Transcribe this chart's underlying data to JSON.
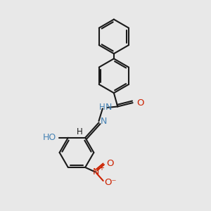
{
  "bg_color": "#e8e8e8",
  "bond_color": "#1a1a1a",
  "N_color": "#4682b4",
  "O_color": "#cc2200",
  "lw": 1.5,
  "fig_size": [
    3.0,
    3.0
  ],
  "dpi": 100,
  "xlim": [
    0,
    10
  ],
  "ylim": [
    0,
    10
  ]
}
